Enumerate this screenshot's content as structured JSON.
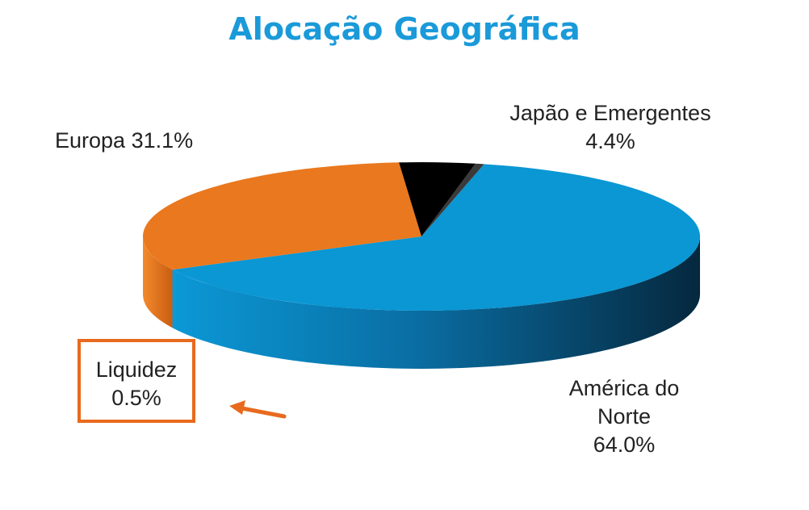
{
  "title": "Alocação Geográfica",
  "labels": {
    "europa": "Europa  31.1%",
    "japao_name": "Japão  e Emergentes",
    "japao_value": "4.4%",
    "america_line1": "América do",
    "america_line2": "Norte",
    "america_value": "64.0%",
    "liquidez_name": "Liquidez",
    "liquidez_value": "0.5%"
  },
  "colors": {
    "title": "#1a9ad9",
    "america": "#0a97d4",
    "europa": "#ea781e",
    "japao": "#000000",
    "liquidez": "#3a3a3a",
    "highlight": "#e86a1e"
  },
  "chart_data": {
    "type": "pie",
    "style": "3d",
    "title": "Alocação Geográfica",
    "slices": [
      {
        "name": "América do Norte",
        "value": 64.0
      },
      {
        "name": "Europa",
        "value": 31.1
      },
      {
        "name": "Japão e Emergentes",
        "value": 4.4
      },
      {
        "name": "Liquidez",
        "value": 0.5
      }
    ],
    "highlighted": "Liquidez"
  }
}
